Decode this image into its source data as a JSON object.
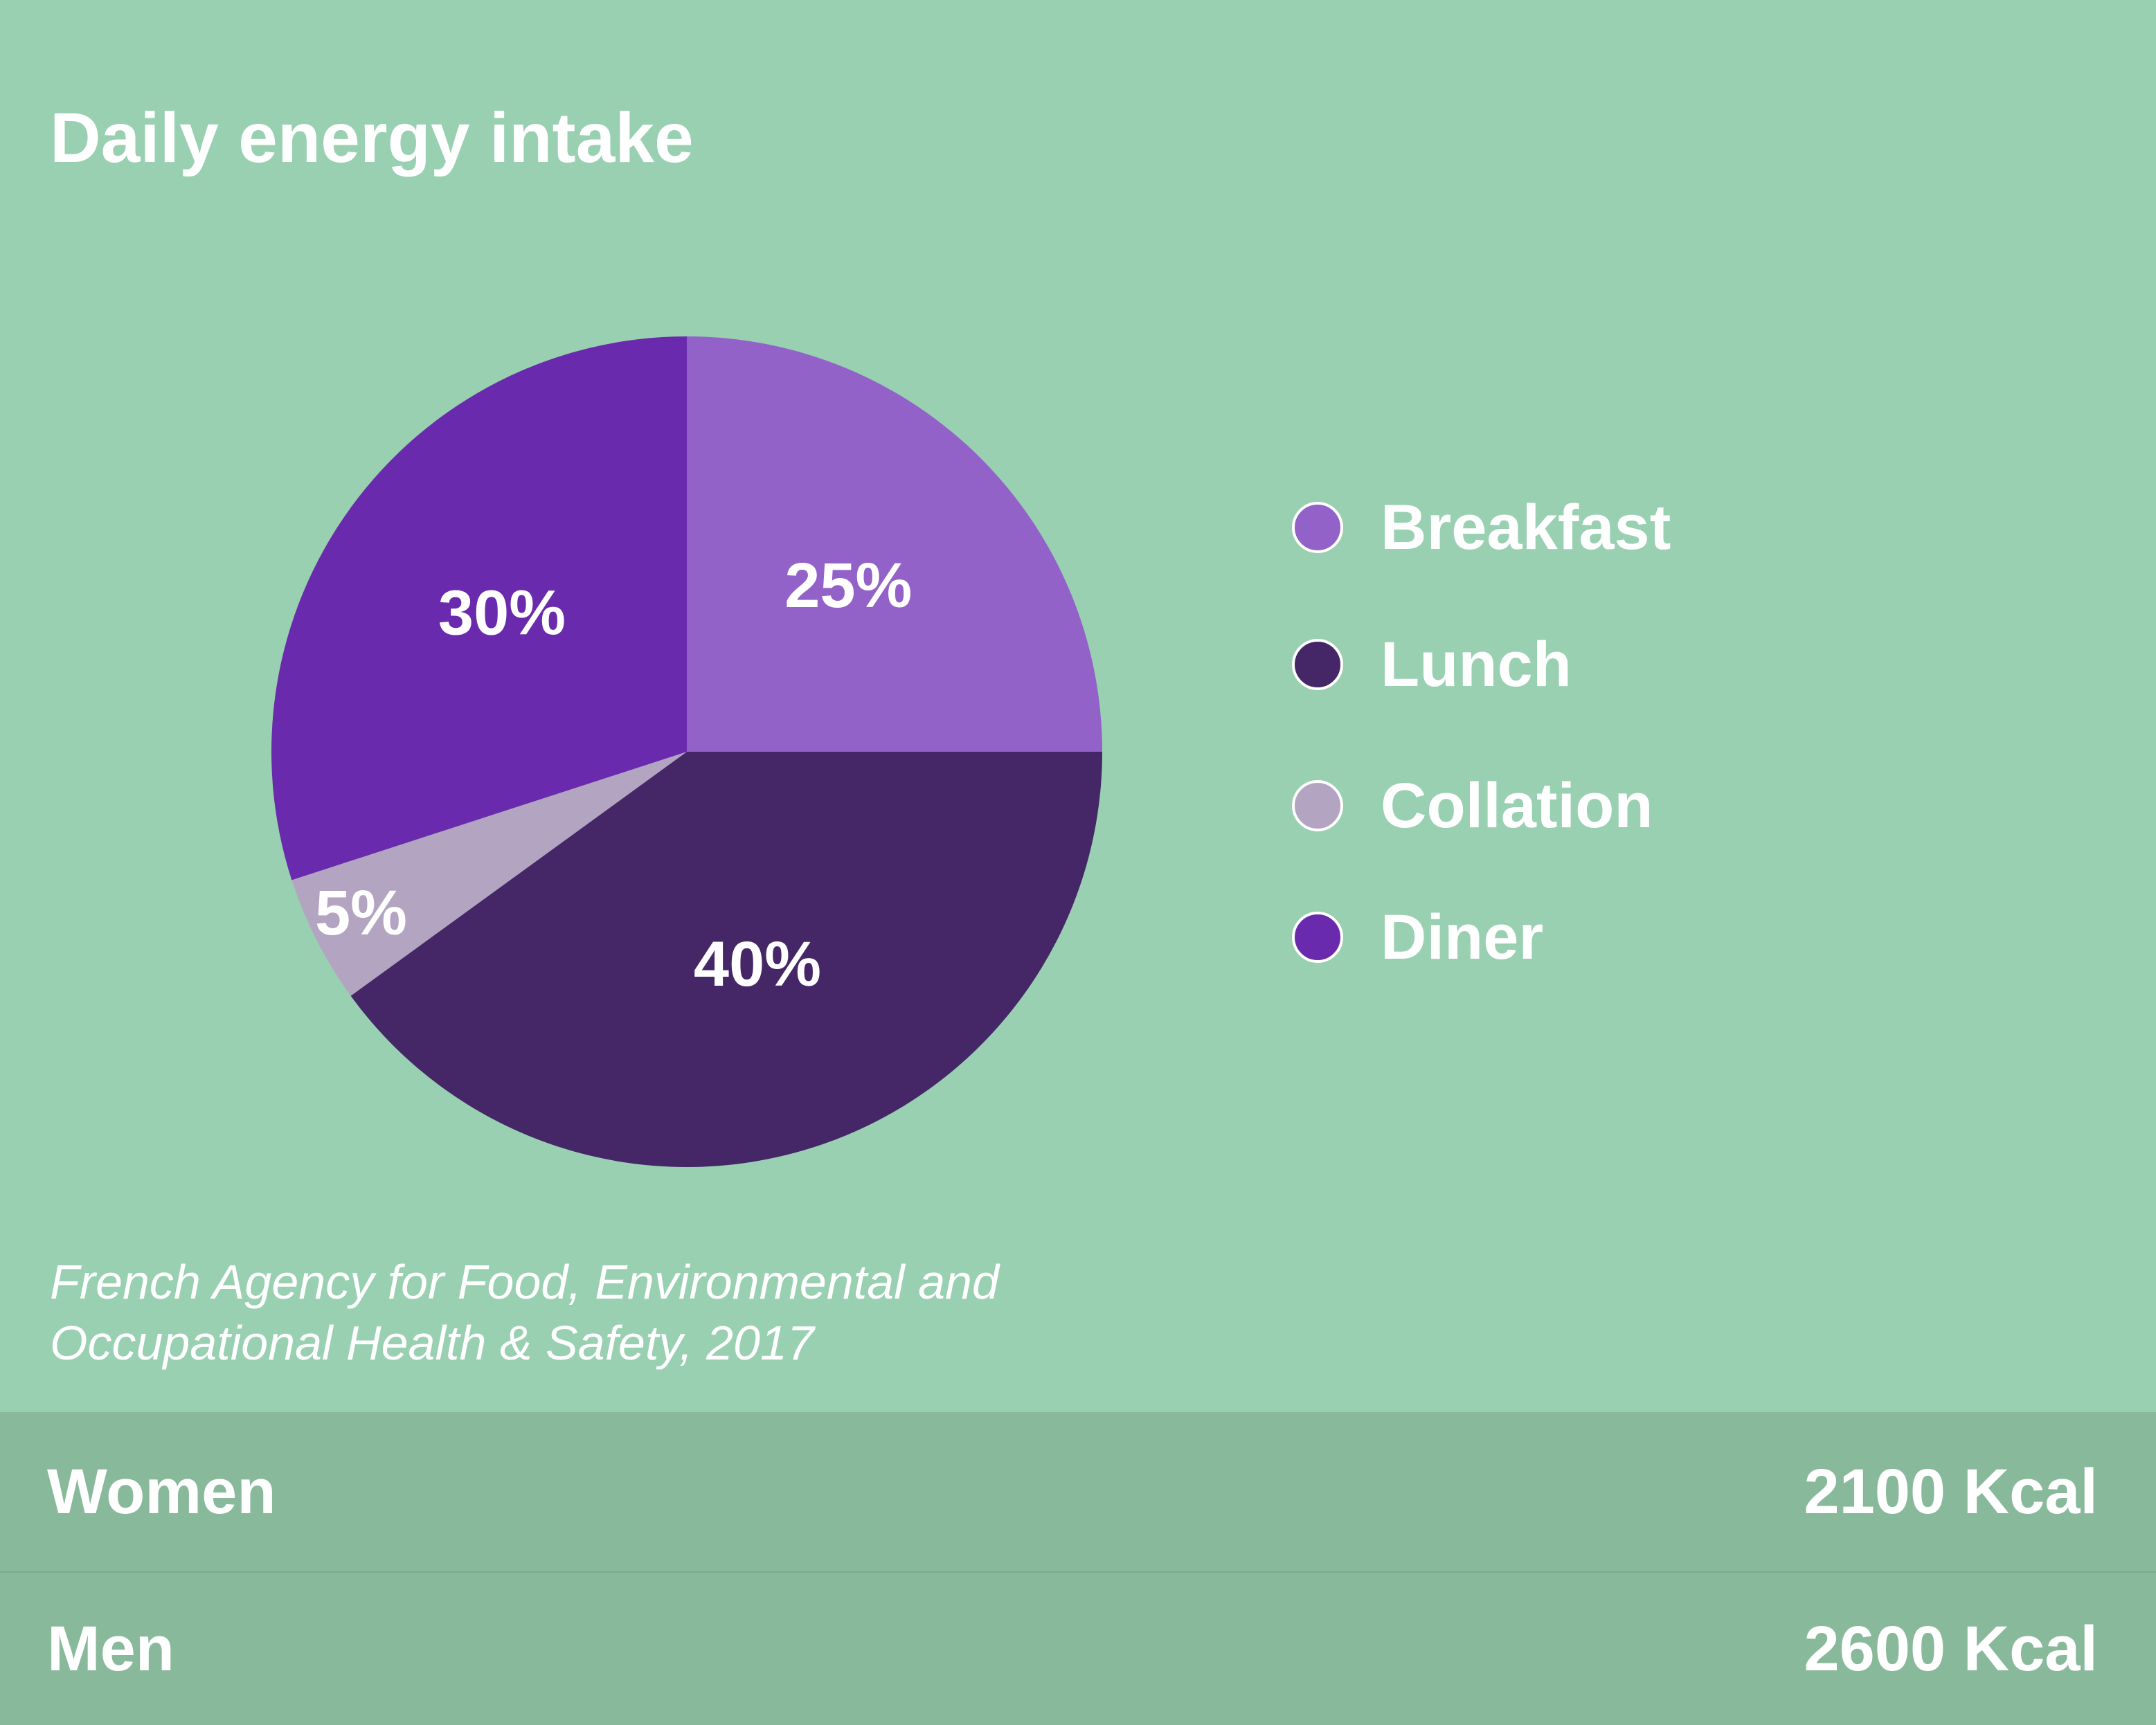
{
  "title": "Daily energy intake",
  "source": {
    "line1": "French Agency for Food, Environmental and",
    "line2": "Occupational Health & Safety, 2017"
  },
  "colors": {
    "background": "#98d0b1",
    "table_row": "#89b99b",
    "breakfast": "#9362c9",
    "lunch": "#452667",
    "collation": "#b3a5c1",
    "diner": "#6a2aad"
  },
  "chart_data": {
    "type": "pie",
    "title": "Daily energy intake",
    "legend_position": "right",
    "slices": [
      {
        "label": "Breakfast",
        "value": 25,
        "display": "25%",
        "color": "#9362c9"
      },
      {
        "label": "Lunch",
        "value": 40,
        "display": "40%",
        "color": "#452667"
      },
      {
        "label": "Collation",
        "value": 5,
        "display": "5%",
        "color": "#b3a5c1"
      },
      {
        "label": "Diner",
        "value": 30,
        "display": "30%",
        "color": "#6a2aad"
      }
    ]
  },
  "table": {
    "rows": [
      {
        "label": "Women",
        "value": "2100 Kcal"
      },
      {
        "label": "Men",
        "value": "2600 Kcal"
      }
    ]
  }
}
